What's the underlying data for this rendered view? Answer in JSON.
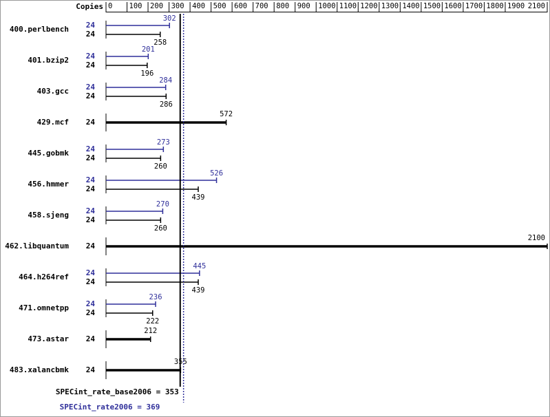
{
  "chart_data": {
    "type": "bar",
    "axis_label": "Copies",
    "xlim": [
      0,
      2100
    ],
    "xticks": [
      0,
      100,
      200,
      300,
      400,
      500,
      600,
      700,
      800,
      900,
      1000,
      1100,
      1200,
      1300,
      1400,
      1500,
      1600,
      1700,
      1800,
      1900,
      2100
    ],
    "categories": [
      "400.perlbench",
      "401.bzip2",
      "403.gcc",
      "429.mcf",
      "445.gobmk",
      "456.hmmer",
      "458.sjeng",
      "462.libquantum",
      "464.h264ref",
      "471.omnetpp",
      "473.astar",
      "483.xalancbmk"
    ],
    "series": [
      {
        "color": "#2f2f9a",
        "copies": [
          24,
          24,
          24,
          null,
          24,
          24,
          24,
          null,
          24,
          24,
          null,
          null
        ],
        "values": [
          302,
          201,
          284,
          null,
          273,
          526,
          270,
          null,
          445,
          236,
          null,
          null
        ]
      },
      {
        "color": "#000000",
        "copies": [
          24,
          24,
          24,
          24,
          24,
          24,
          24,
          24,
          24,
          24,
          24,
          24
        ],
        "values": [
          258,
          196,
          286,
          572,
          260,
          439,
          260,
          2100,
          439,
          222,
          212,
          355
        ]
      }
    ],
    "summary": [
      {
        "text": "SPECint_rate_base2006 = 353",
        "value": 353,
        "color": "#000000",
        "style": "solid"
      },
      {
        "text": "SPECint_rate2006 = 369",
        "value": 369,
        "color": "#2f2f9a",
        "style": "dotted"
      }
    ]
  }
}
